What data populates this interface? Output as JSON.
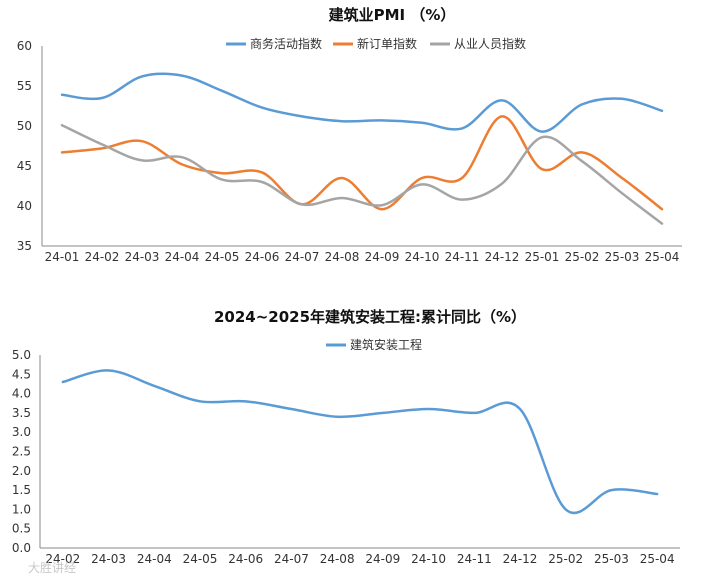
{
  "chart_data": [
    {
      "type": "line",
      "title": "建筑业PMI （%）",
      "categories": [
        "24-01",
        "24-02",
        "24-03",
        "24-04",
        "24-05",
        "24-06",
        "24-07",
        "24-08",
        "24-09",
        "24-10",
        "24-11",
        "24-12",
        "25-01",
        "25-02",
        "25-03",
        "25-04"
      ],
      "ylim": [
        35,
        60
      ],
      "yticks": [
        "35",
        "40",
        "45",
        "50",
        "55",
        "60"
      ],
      "legend_position": "top",
      "grid": false,
      "series": [
        {
          "name": "商务活动指数",
          "color": "#5b9bd5",
          "values": [
            53.9,
            53.5,
            56.2,
            56.3,
            54.4,
            52.3,
            51.2,
            50.6,
            50.7,
            50.4,
            49.7,
            53.2,
            49.3,
            52.7,
            53.4,
            51.9
          ]
        },
        {
          "name": "新订单指数",
          "color": "#ed7d31",
          "values": [
            46.7,
            47.2,
            48.1,
            45.2,
            44.1,
            44.2,
            40.2,
            43.5,
            39.6,
            43.5,
            43.5,
            51.2,
            44.6,
            46.7,
            43.5,
            39.6
          ]
        },
        {
          "name": "从业人员指数",
          "color": "#a5a5a5",
          "values": [
            50.1,
            47.7,
            45.7,
            46.1,
            43.3,
            43.0,
            40.2,
            41.0,
            40.1,
            42.7,
            40.8,
            42.8,
            48.6,
            45.6,
            41.6,
            37.8
          ]
        }
      ]
    },
    {
      "type": "line",
      "title": "2024~2025年建筑安装工程:累计同比（%）",
      "categories": [
        "24-02",
        "24-03",
        "24-04",
        "24-05",
        "24-06",
        "24-07",
        "24-08",
        "24-09",
        "24-10",
        "24-11",
        "24-12",
        "25-02",
        "25-03",
        "25-04"
      ],
      "ylim": [
        0,
        5
      ],
      "yticks": [
        "0.0",
        "0.5",
        "1.0",
        "1.5",
        "2.0",
        "2.5",
        "3.0",
        "3.5",
        "4.0",
        "4.5",
        "5.0"
      ],
      "legend_position": "top",
      "grid": false,
      "series": [
        {
          "name": "建筑安装工程",
          "color": "#5b9bd5",
          "values": [
            4.3,
            4.6,
            4.2,
            3.8,
            3.8,
            3.6,
            3.4,
            3.5,
            3.6,
            3.5,
            3.6,
            1.0,
            1.5,
            1.4
          ]
        }
      ]
    }
  ],
  "watermark": "大胜讲经"
}
